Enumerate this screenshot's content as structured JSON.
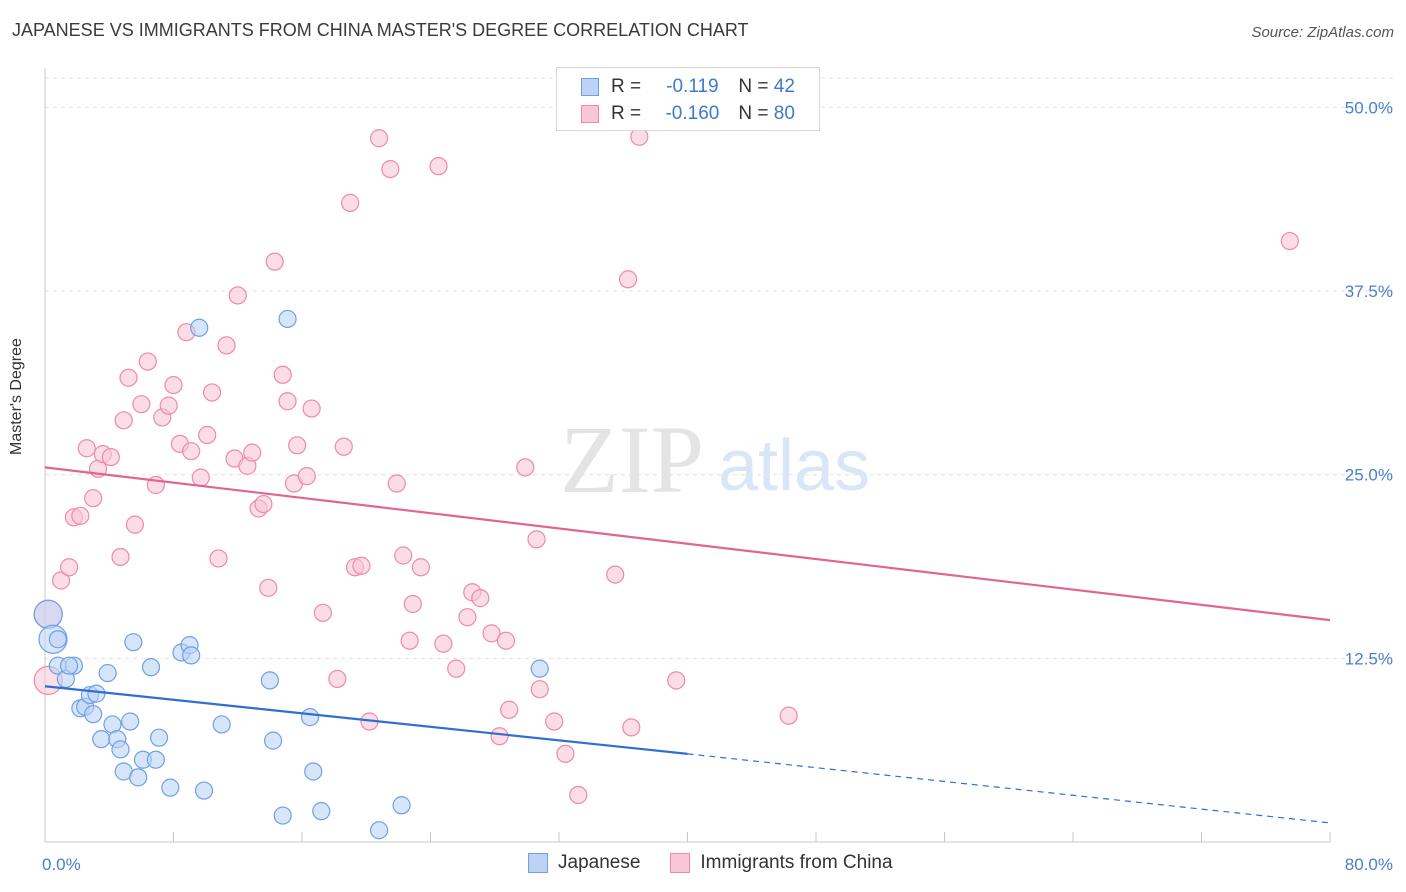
{
  "title": "JAPANESE VS IMMIGRANTS FROM CHINA MASTER'S DEGREE CORRELATION CHART",
  "source": "Source: ZipAtlas.com",
  "watermark": {
    "zip": "ZIP",
    "atlas": "atlas"
  },
  "legend": {
    "r_label": "R =",
    "n_label": "N =",
    "rows": [
      {
        "r": "-0.119",
        "n": "42",
        "color": "#6ea0e8",
        "fill": "#bcd3f5"
      },
      {
        "r": "-0.160",
        "n": "80",
        "color": "#ee8aa8",
        "fill": "#f8c6d5"
      }
    ]
  },
  "bottom_legend": [
    "Japanese",
    "Immigrants from China"
  ],
  "chart_data": {
    "type": "scatter",
    "title": "JAPANESE VS IMMIGRANTS FROM CHINA MASTER'S DEGREE CORRELATION CHART",
    "xlabel": "",
    "ylabel": "Master's Degree",
    "xlim": [
      0,
      80
    ],
    "ylim": [
      0,
      52
    ],
    "x_tick_labels": [
      "0.0%",
      "80.0%"
    ],
    "y_ticks": [
      12.5,
      25.0,
      37.5,
      50.0
    ],
    "y_tick_labels": [
      "12.5%",
      "25.0%",
      "37.5%",
      "50.0%"
    ],
    "grid": true,
    "legend_position": "top-center",
    "series": [
      {
        "name": "Japanese",
        "color": "#6ea0e8",
        "fill": "#bcd3f5",
        "trend": {
          "x0": 0,
          "y0": 10.6,
          "x1": 40,
          "y1": 6.0,
          "dashed_to_x": 80,
          "dashed_to_y": 1.3
        },
        "points": [
          [
            0.2,
            15.5
          ],
          [
            0.5,
            13.8
          ],
          [
            0.8,
            12.0
          ],
          [
            1.3,
            11.1
          ],
          [
            1.8,
            12.0
          ],
          [
            2.2,
            9.1
          ],
          [
            2.5,
            9.2
          ],
          [
            2.8,
            10.0
          ],
          [
            3.0,
            8.7
          ],
          [
            3.2,
            10.1
          ],
          [
            3.5,
            7.0
          ],
          [
            3.9,
            11.5
          ],
          [
            4.2,
            8.0
          ],
          [
            4.5,
            7.0
          ],
          [
            4.7,
            6.3
          ],
          [
            4.9,
            4.8
          ],
          [
            5.3,
            8.2
          ],
          [
            5.5,
            13.6
          ],
          [
            5.8,
            4.4
          ],
          [
            6.1,
            5.6
          ],
          [
            6.6,
            11.9
          ],
          [
            6.9,
            5.6
          ],
          [
            7.1,
            7.1
          ],
          [
            7.8,
            3.7
          ],
          [
            8.5,
            12.9
          ],
          [
            9.0,
            13.4
          ],
          [
            9.1,
            12.7
          ],
          [
            9.6,
            35.0
          ],
          [
            9.9,
            3.5
          ],
          [
            11.0,
            8.0
          ],
          [
            14.0,
            11.0
          ],
          [
            14.2,
            6.9
          ],
          [
            14.8,
            1.8
          ],
          [
            15.1,
            35.6
          ],
          [
            16.5,
            8.5
          ],
          [
            16.7,
            4.8
          ],
          [
            17.2,
            2.1
          ],
          [
            20.8,
            0.8
          ],
          [
            22.2,
            2.5
          ],
          [
            30.8,
            11.8
          ],
          [
            0.8,
            13.8
          ],
          [
            1.5,
            12.0
          ]
        ]
      },
      {
        "name": "Immigrants from China",
        "color": "#ee8aa8",
        "fill": "#f8c6d5",
        "trend": {
          "x0": 0,
          "y0": 25.5,
          "x1": 80,
          "y1": 15.1
        },
        "points": [
          [
            0.2,
            15.5
          ],
          [
            0.2,
            11.0
          ],
          [
            1.0,
            17.8
          ],
          [
            1.5,
            18.7
          ],
          [
            1.8,
            22.1
          ],
          [
            2.2,
            22.2
          ],
          [
            2.6,
            26.8
          ],
          [
            3.0,
            23.4
          ],
          [
            3.3,
            25.4
          ],
          [
            3.6,
            26.4
          ],
          [
            4.1,
            26.2
          ],
          [
            4.7,
            19.4
          ],
          [
            4.9,
            28.7
          ],
          [
            5.2,
            31.6
          ],
          [
            5.6,
            21.6
          ],
          [
            6.0,
            29.8
          ],
          [
            6.4,
            32.7
          ],
          [
            6.9,
            24.3
          ],
          [
            7.3,
            28.9
          ],
          [
            7.7,
            29.7
          ],
          [
            8.0,
            31.1
          ],
          [
            8.4,
            27.1
          ],
          [
            8.8,
            34.7
          ],
          [
            9.1,
            26.6
          ],
          [
            9.7,
            24.8
          ],
          [
            10.1,
            27.7
          ],
          [
            10.4,
            30.6
          ],
          [
            10.8,
            19.3
          ],
          [
            11.3,
            33.8
          ],
          [
            11.8,
            26.1
          ],
          [
            12.0,
            37.2
          ],
          [
            12.6,
            25.6
          ],
          [
            12.9,
            26.5
          ],
          [
            13.3,
            22.7
          ],
          [
            13.6,
            23.0
          ],
          [
            13.9,
            17.3
          ],
          [
            14.3,
            39.5
          ],
          [
            14.8,
            31.8
          ],
          [
            15.1,
            30.0
          ],
          [
            15.5,
            24.4
          ],
          [
            15.7,
            27.0
          ],
          [
            16.3,
            24.9
          ],
          [
            16.6,
            29.5
          ],
          [
            17.3,
            15.6
          ],
          [
            18.2,
            11.1
          ],
          [
            18.6,
            26.9
          ],
          [
            19.0,
            43.5
          ],
          [
            19.3,
            18.7
          ],
          [
            19.7,
            18.8
          ],
          [
            20.2,
            8.2
          ],
          [
            20.8,
            47.9
          ],
          [
            21.5,
            45.8
          ],
          [
            21.9,
            24.4
          ],
          [
            22.3,
            19.5
          ],
          [
            22.7,
            13.7
          ],
          [
            22.9,
            16.2
          ],
          [
            23.4,
            18.7
          ],
          [
            24.5,
            46.0
          ],
          [
            24.8,
            13.5
          ],
          [
            25.6,
            11.8
          ],
          [
            26.3,
            15.3
          ],
          [
            26.6,
            17.0
          ],
          [
            27.1,
            16.6
          ],
          [
            27.8,
            14.2
          ],
          [
            28.3,
            7.2
          ],
          [
            28.7,
            13.7
          ],
          [
            28.9,
            9.0
          ],
          [
            29.9,
            25.5
          ],
          [
            30.6,
            20.6
          ],
          [
            30.8,
            10.4
          ],
          [
            31.7,
            8.2
          ],
          [
            32.4,
            6.0
          ],
          [
            33.2,
            3.2
          ],
          [
            35.5,
            18.2
          ],
          [
            36.3,
            38.3
          ],
          [
            36.5,
            7.8
          ],
          [
            39.3,
            11.0
          ],
          [
            46.3,
            8.6
          ],
          [
            77.5,
            40.9
          ],
          [
            37.0,
            48.0
          ]
        ]
      }
    ]
  }
}
